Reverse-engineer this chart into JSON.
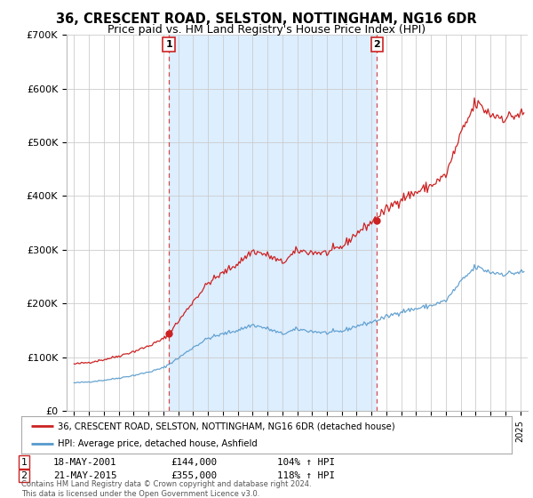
{
  "title1": "36, CRESCENT ROAD, SELSTON, NOTTINGHAM, NG16 6DR",
  "title2": "Price paid vs. HM Land Registry's House Price Index (HPI)",
  "ylim": [
    0,
    700000
  ],
  "yticks": [
    0,
    100000,
    200000,
    300000,
    400000,
    500000,
    600000,
    700000
  ],
  "ytick_labels": [
    "£0",
    "£100K",
    "£200K",
    "£300K",
    "£400K",
    "£500K",
    "£600K",
    "£700K"
  ],
  "sale1_year_f": 2001.375,
  "sale1_price": 144000,
  "sale2_year_f": 2015.375,
  "sale2_price": 355000,
  "hpi_color": "#5599cc",
  "price_color": "#cc2222",
  "shade_color": "#ddeeff",
  "legend_label1": "36, CRESCENT ROAD, SELSTON, NOTTINGHAM, NG16 6DR (detached house)",
  "legend_label2": "HPI: Average price, detached house, Ashfield",
  "footnote": "Contains HM Land Registry data © Crown copyright and database right 2024.\nThis data is licensed under the Open Government Licence v3.0.",
  "bg_color": "#ffffff",
  "grid_color": "#cccccc",
  "xlim_left": 1994.5,
  "xlim_right": 2025.5
}
